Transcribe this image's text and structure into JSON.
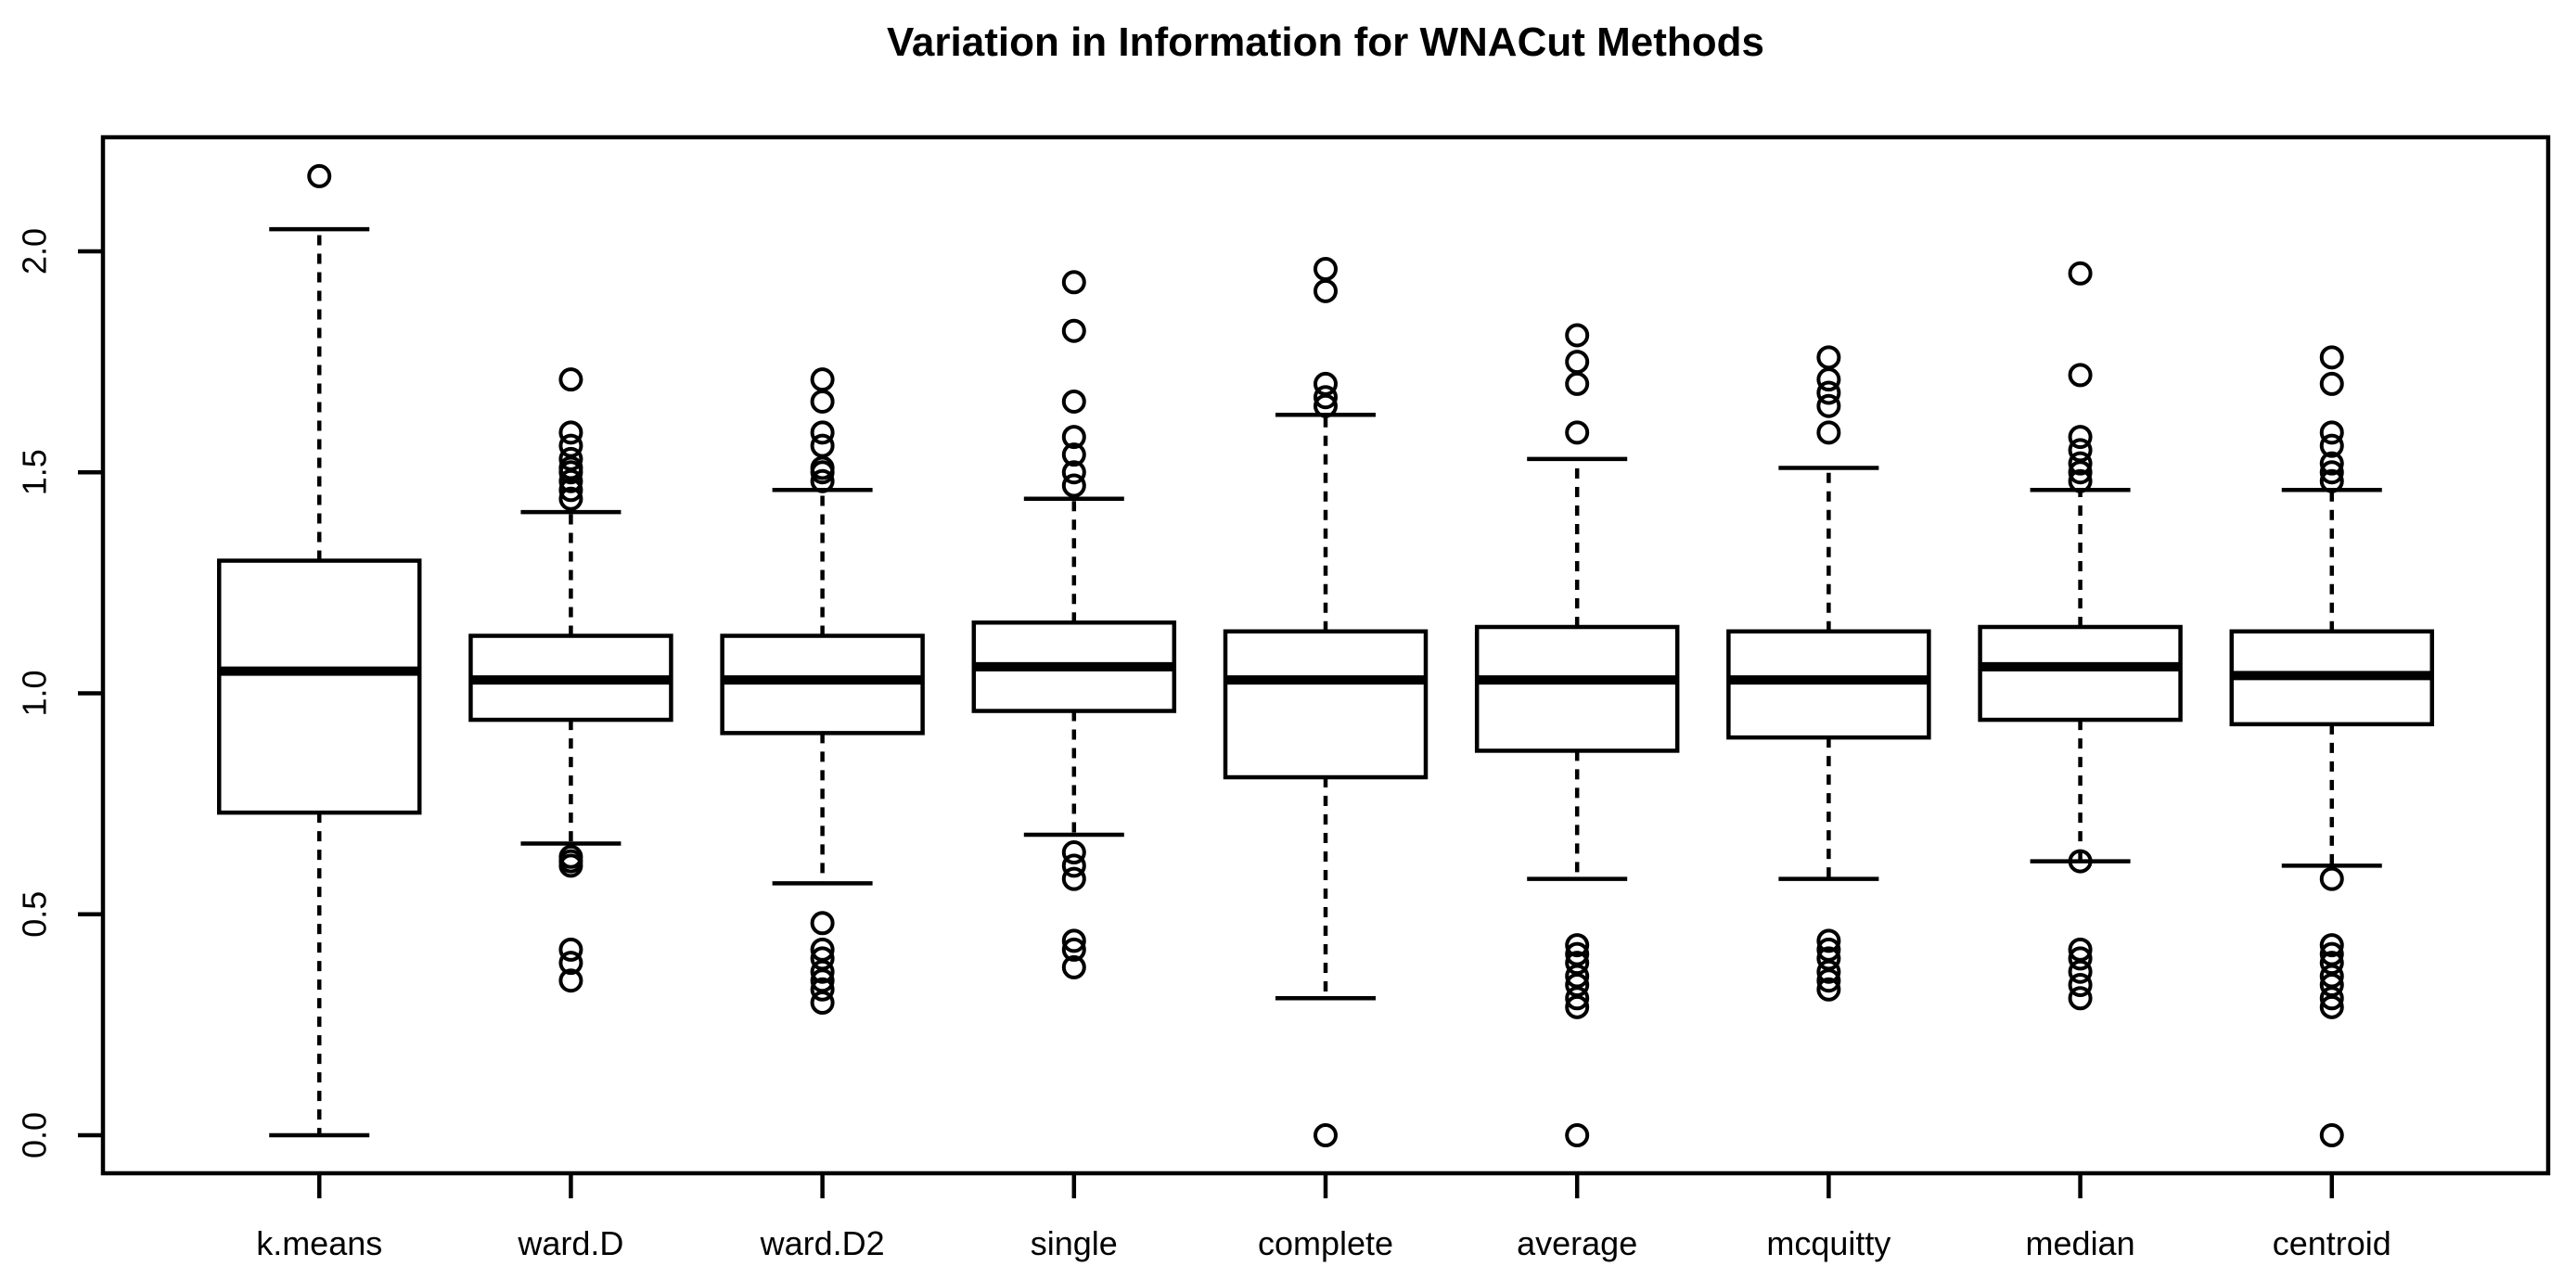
{
  "title": "Variation in Information for WNACut Methods",
  "colors": {
    "line": "#000000",
    "background": "#ffffff",
    "box_fill": "#ffffff"
  },
  "chart_data": {
    "type": "boxplot",
    "title": "Variation in Information for WNACut Methods",
    "xlabel": "",
    "ylabel": "",
    "grid": false,
    "legend": "none",
    "ylim": [
      -0.09,
      2.26
    ],
    "y_ticks": [
      0.0,
      0.5,
      1.0,
      1.5,
      2.0
    ],
    "y_tick_labels": [
      "0.0",
      "0.5",
      "1.0",
      "1.5",
      "2.0"
    ],
    "categories": [
      "k.means",
      "ward.D",
      "ward.D2",
      "single",
      "complete",
      "average",
      "mcquitty",
      "median",
      "centroid"
    ],
    "series": [
      {
        "name": "k.means",
        "whisker_low": 0.0,
        "q1": 0.73,
        "median": 1.05,
        "q3": 1.3,
        "whisker_high": 2.05,
        "outliers": [
          2.17
        ]
      },
      {
        "name": "ward.D",
        "whisker_low": 0.66,
        "q1": 0.94,
        "median": 1.03,
        "q3": 1.13,
        "whisker_high": 1.41,
        "outliers": [
          1.44,
          1.46,
          1.48,
          1.5,
          1.51,
          1.53,
          1.56,
          1.59,
          1.71,
          0.63,
          0.62,
          0.61,
          0.42,
          0.39,
          0.35
        ]
      },
      {
        "name": "ward.D2",
        "whisker_low": 0.57,
        "q1": 0.91,
        "median": 1.03,
        "q3": 1.13,
        "whisker_high": 1.46,
        "outliers": [
          1.48,
          1.5,
          1.51,
          1.56,
          1.59,
          1.66,
          1.71,
          0.48,
          0.42,
          0.4,
          0.37,
          0.35,
          0.33,
          0.3
        ]
      },
      {
        "name": "single",
        "whisker_low": 0.68,
        "q1": 0.96,
        "median": 1.06,
        "q3": 1.16,
        "whisker_high": 1.44,
        "outliers": [
          1.47,
          1.5,
          1.54,
          1.58,
          1.66,
          1.82,
          1.93,
          0.64,
          0.61,
          0.58,
          0.44,
          0.42,
          0.38
        ]
      },
      {
        "name": "complete",
        "whisker_low": 0.31,
        "q1": 0.81,
        "median": 1.03,
        "q3": 1.14,
        "whisker_high": 1.63,
        "outliers": [
          1.65,
          1.67,
          1.7,
          1.91,
          1.96,
          0.0
        ]
      },
      {
        "name": "average",
        "whisker_low": 0.58,
        "q1": 0.87,
        "median": 1.03,
        "q3": 1.15,
        "whisker_high": 1.53,
        "outliers": [
          1.59,
          1.7,
          1.75,
          1.81,
          0.43,
          0.41,
          0.39,
          0.36,
          0.34,
          0.31,
          0.29,
          0.0
        ]
      },
      {
        "name": "mcquitty",
        "whisker_low": 0.58,
        "q1": 0.9,
        "median": 1.03,
        "q3": 1.14,
        "whisker_high": 1.51,
        "outliers": [
          1.59,
          1.65,
          1.68,
          1.71,
          1.76,
          0.44,
          0.42,
          0.4,
          0.37,
          0.35,
          0.33
        ]
      },
      {
        "name": "median",
        "whisker_low": 0.62,
        "q1": 0.94,
        "median": 1.06,
        "q3": 1.15,
        "whisker_high": 1.46,
        "outliers": [
          1.48,
          1.5,
          1.52,
          1.55,
          1.58,
          1.72,
          1.95,
          0.62,
          0.42,
          0.4,
          0.37,
          0.34,
          0.31
        ]
      },
      {
        "name": "centroid",
        "whisker_low": 0.61,
        "q1": 0.93,
        "median": 1.04,
        "q3": 1.14,
        "whisker_high": 1.46,
        "outliers": [
          1.48,
          1.5,
          1.52,
          1.56,
          1.59,
          1.7,
          1.76,
          0.58,
          0.43,
          0.41,
          0.39,
          0.36,
          0.34,
          0.31,
          0.29,
          0.0
        ]
      }
    ]
  }
}
